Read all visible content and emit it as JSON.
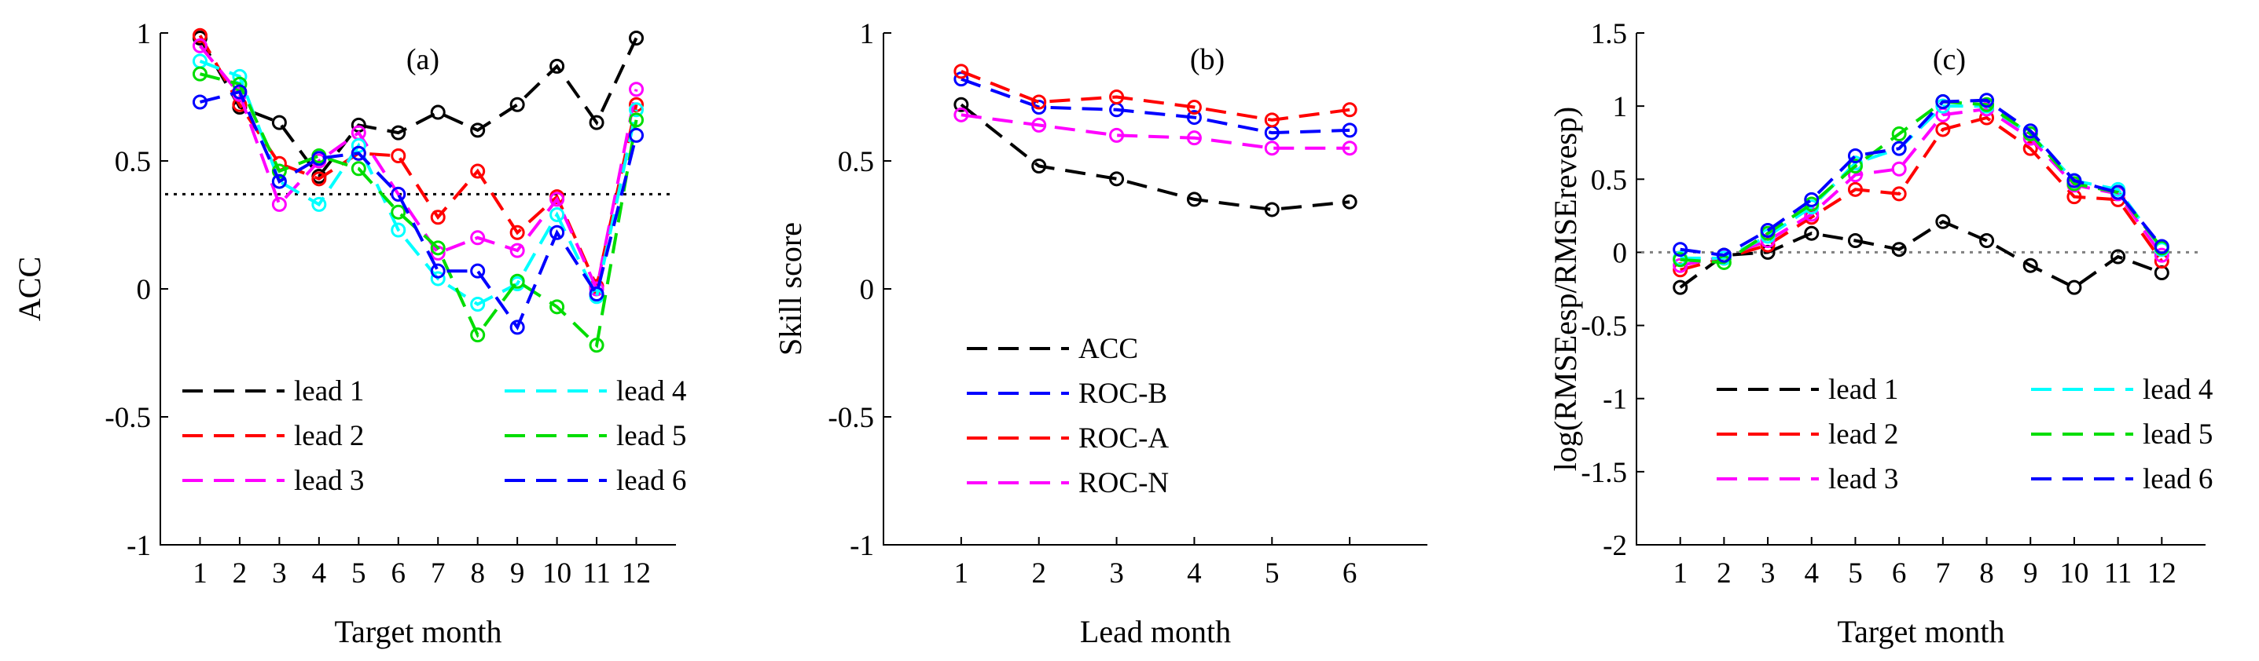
{
  "chart_data": [
    {
      "type": "line",
      "panel_label": "(a)",
      "xlabel": "Target month",
      "ylabel": "ACC",
      "ylim": [
        -1,
        1
      ],
      "yticks": [
        -1,
        -0.5,
        0,
        0.5,
        1
      ],
      "ytick_labels": [
        "-1",
        "-0.5",
        "0",
        "0.5",
        "1"
      ],
      "x": [
        1,
        2,
        3,
        4,
        5,
        6,
        7,
        8,
        9,
        10,
        11,
        12
      ],
      "xtick_labels": [
        "1",
        "2",
        "3",
        "4",
        "5",
        "6",
        "7",
        "8",
        "9",
        "10",
        "11",
        "12"
      ],
      "reference_line": {
        "y": 0.37,
        "style": "dotted",
        "color": "#000000"
      },
      "legend": {
        "position": "bottom",
        "columns": 2
      },
      "series": [
        {
          "name": "lead 1",
          "color": "#000000",
          "values": [
            0.98,
            0.71,
            0.65,
            0.44,
            0.64,
            0.61,
            0.69,
            0.62,
            0.72,
            0.87,
            0.65,
            0.98
          ]
        },
        {
          "name": "lead 2",
          "color": "#ff0000",
          "values": [
            0.99,
            0.72,
            0.49,
            0.43,
            0.53,
            0.52,
            0.28,
            0.46,
            0.22,
            0.36,
            0.01,
            0.72
          ]
        },
        {
          "name": "lead 3",
          "color": "#ff00ff",
          "values": [
            0.95,
            0.76,
            0.33,
            0.5,
            0.61,
            0.37,
            0.14,
            0.2,
            0.15,
            0.35,
            0.0,
            0.78
          ]
        },
        {
          "name": "lead 4",
          "color": "#00ffff",
          "values": [
            0.89,
            0.83,
            0.42,
            0.33,
            0.56,
            0.23,
            0.04,
            -0.06,
            0.02,
            0.29,
            -0.03,
            0.7
          ]
        },
        {
          "name": "lead 5",
          "color": "#00dd00",
          "values": [
            0.84,
            0.8,
            0.46,
            0.52,
            0.47,
            0.3,
            0.16,
            -0.18,
            0.03,
            -0.07,
            -0.22,
            0.66
          ]
        },
        {
          "name": "lead 6",
          "color": "#0000ff",
          "values": [
            0.73,
            0.77,
            0.42,
            0.51,
            0.53,
            0.37,
            0.07,
            0.07,
            -0.15,
            0.22,
            -0.02,
            0.6
          ]
        }
      ]
    },
    {
      "type": "line",
      "panel_label": "(b)",
      "xlabel": "Lead month",
      "ylabel": "Skill score",
      "ylim": [
        -1,
        1
      ],
      "yticks": [
        -1,
        -0.5,
        0,
        0.5,
        1
      ],
      "ytick_labels": [
        "-1",
        "-0.5",
        "0",
        "0.5",
        "1"
      ],
      "x": [
        1,
        2,
        3,
        4,
        5,
        6
      ],
      "xtick_labels": [
        "1",
        "2",
        "3",
        "4",
        "5",
        "6"
      ],
      "legend": {
        "position": "bottom-left",
        "columns": 1
      },
      "series": [
        {
          "name": "ACC",
          "color": "#000000",
          "values": [
            0.72,
            0.48,
            0.43,
            0.35,
            0.31,
            0.34
          ]
        },
        {
          "name": "ROC-B",
          "color": "#0000ff",
          "values": [
            0.82,
            0.71,
            0.7,
            0.67,
            0.61,
            0.62
          ]
        },
        {
          "name": "ROC-A",
          "color": "#ff0000",
          "values": [
            0.85,
            0.73,
            0.75,
            0.71,
            0.66,
            0.7
          ]
        },
        {
          "name": "ROC-N",
          "color": "#ff00ff",
          "values": [
            0.68,
            0.64,
            0.6,
            0.59,
            0.55,
            0.55
          ]
        }
      ]
    },
    {
      "type": "line",
      "panel_label": "(c)",
      "xlabel": "Target month",
      "ylabel": "log(RMSEesp/RMSErevesp)",
      "ylim": [
        -2,
        1.5
      ],
      "yticks": [
        -2,
        -1.5,
        -1,
        -0.5,
        0,
        0.5,
        1,
        1.5
      ],
      "ytick_labels": [
        "-2",
        "-1.5",
        "-1",
        "-0.5",
        "0",
        "0.5",
        "1",
        "1.5"
      ],
      "x": [
        1,
        2,
        3,
        4,
        5,
        6,
        7,
        8,
        9,
        10,
        11,
        12
      ],
      "xtick_labels": [
        "1",
        "2",
        "3",
        "4",
        "5",
        "6",
        "7",
        "8",
        "9",
        "10",
        "11",
        "12"
      ],
      "reference_line": {
        "y": 0,
        "style": "dotted",
        "color": "#808080"
      },
      "legend": {
        "position": "bottom",
        "columns": 2
      },
      "series": [
        {
          "name": "lead 1",
          "color": "#000000",
          "values": [
            -0.24,
            -0.02,
            0.0,
            0.13,
            0.08,
            0.02,
            0.21,
            0.08,
            -0.09,
            -0.24,
            -0.03,
            -0.14
          ]
        },
        {
          "name": "lead 2",
          "color": "#ff0000",
          "values": [
            -0.12,
            -0.04,
            0.05,
            0.24,
            0.43,
            0.4,
            0.84,
            0.92,
            0.71,
            0.38,
            0.36,
            -0.06
          ]
        },
        {
          "name": "lead 3",
          "color": "#ff00ff",
          "values": [
            -0.09,
            -0.03,
            0.08,
            0.26,
            0.53,
            0.57,
            0.94,
            0.98,
            0.78,
            0.46,
            0.4,
            -0.02
          ]
        },
        {
          "name": "lead 4",
          "color": "#00ffff",
          "values": [
            -0.04,
            -0.04,
            0.11,
            0.31,
            0.61,
            0.71,
            1.0,
            1.0,
            0.81,
            0.49,
            0.43,
            0.02
          ]
        },
        {
          "name": "lead 5",
          "color": "#00dd00",
          "values": [
            -0.05,
            -0.07,
            0.13,
            0.33,
            0.59,
            0.81,
            1.03,
            1.01,
            0.81,
            0.47,
            0.41,
            0.03
          ]
        },
        {
          "name": "lead 6",
          "color": "#0000ff",
          "values": [
            0.02,
            -0.02,
            0.15,
            0.36,
            0.66,
            0.71,
            1.03,
            1.04,
            0.83,
            0.49,
            0.41,
            0.04
          ]
        }
      ]
    }
  ]
}
